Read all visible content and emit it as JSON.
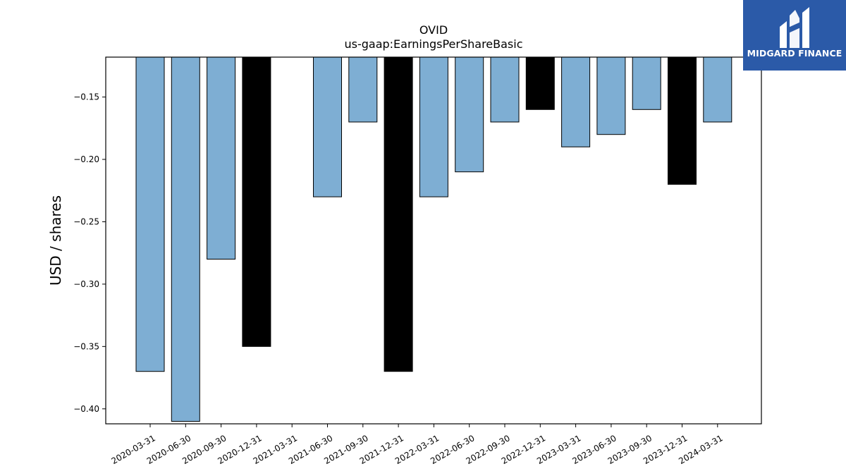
{
  "chart_data": {
    "type": "bar",
    "title": "OVID",
    "subtitle": "us-gaap:EarningsPerShareBasic",
    "xlabel": "",
    "ylabel": "USD / shares",
    "ylim": [
      -0.412,
      -0.118
    ],
    "yticks": [
      -0.15,
      -0.2,
      -0.25,
      -0.3,
      -0.35,
      -0.4
    ],
    "ytick_labels": [
      "−0.15",
      "−0.20",
      "−0.25",
      "−0.30",
      "−0.35",
      "−0.40"
    ],
    "categories": [
      "2020-03-31",
      "2020-06-30",
      "2020-09-30",
      "2020-12-31",
      "2021-03-31",
      "2021-06-30",
      "2021-09-30",
      "2021-12-31",
      "2022-03-31",
      "2022-06-30",
      "2022-09-30",
      "2022-12-31",
      "2023-03-31",
      "2023-06-30",
      "2023-09-30",
      "2023-12-31",
      "2024-03-31"
    ],
    "values": [
      -0.37,
      -0.41,
      -0.28,
      -0.35,
      null,
      -0.23,
      -0.17,
      -0.37,
      -0.23,
      -0.21,
      -0.17,
      -0.16,
      -0.19,
      -0.18,
      -0.16,
      -0.22,
      -0.17
    ],
    "highlight": [
      false,
      false,
      false,
      true,
      false,
      false,
      false,
      true,
      false,
      false,
      false,
      true,
      false,
      false,
      false,
      true,
      false
    ],
    "colors": {
      "bar": "#7eaed3",
      "highlight": "#000000",
      "edge": "#000000"
    },
    "grid": false,
    "legend": "none"
  },
  "logo": {
    "text": "MIDGARD FINANCE",
    "background": "#2b5aa8",
    "icon": "midgard-m-icon"
  }
}
